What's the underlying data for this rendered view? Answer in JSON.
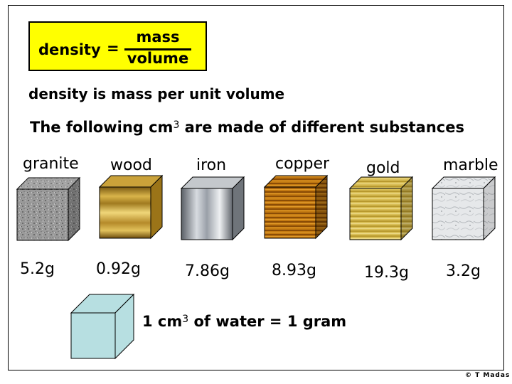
{
  "formula": {
    "lhs": "density",
    "equals": "=",
    "numerator": "mass",
    "denominator": "volume"
  },
  "statement": "density is mass per unit volume",
  "following": {
    "before": "The following cm",
    "exponent": "3",
    "after": " are made of different substances"
  },
  "substances": [
    {
      "name": "granite",
      "mass": "5.2g",
      "texture": "granite"
    },
    {
      "name": "wood",
      "mass": "0.92g",
      "texture": "wood"
    },
    {
      "name": "iron",
      "mass": "7.86g",
      "texture": "iron"
    },
    {
      "name": "copper",
      "mass": "8.93g",
      "texture": "copper"
    },
    {
      "name": "gold",
      "mass": "19.3g",
      "texture": "gold"
    },
    {
      "name": "marble",
      "mass": "3.2g",
      "texture": "marble"
    }
  ],
  "water": {
    "prefix": "1 cm",
    "exponent": "3",
    "middle": " of water",
    "equals": " = ",
    "result": "1 gram",
    "color": "#b7dfe1"
  },
  "copyright": "© T Madas"
}
